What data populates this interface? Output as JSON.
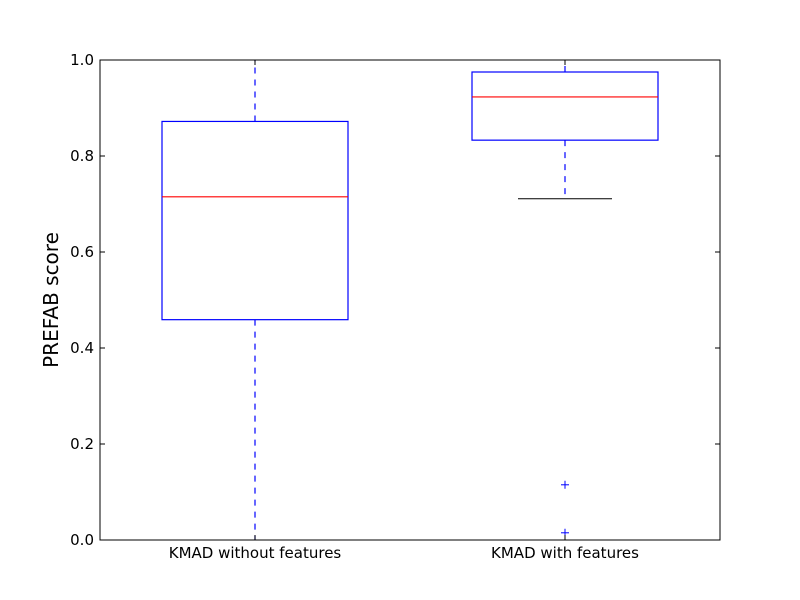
{
  "chart_data": {
    "type": "box",
    "title": "",
    "xlabel": "",
    "ylabel": "PREFAB score",
    "ylim": [
      0.0,
      1.0
    ],
    "yticks": [
      "0.0",
      "0.2",
      "0.4",
      "0.6",
      "0.8",
      "1.0"
    ],
    "categories": [
      "KMAD without features",
      "KMAD with features"
    ],
    "boxes": [
      {
        "category": "KMAD without features",
        "whisker_low": 0.0,
        "q1": 0.459,
        "median": 0.715,
        "q3": 0.872,
        "whisker_high": 1.0,
        "outliers": []
      },
      {
        "category": "KMAD with features",
        "whisker_low": 0.711,
        "q1": 0.833,
        "median": 0.923,
        "q3": 0.975,
        "whisker_high": 1.0,
        "outliers": [
          0.115,
          0.015
        ]
      }
    ],
    "grid": false,
    "colors": {
      "box": "#0000ff",
      "median": "#ff0000",
      "cap": "#000000",
      "outlier": "#0000ff"
    }
  }
}
